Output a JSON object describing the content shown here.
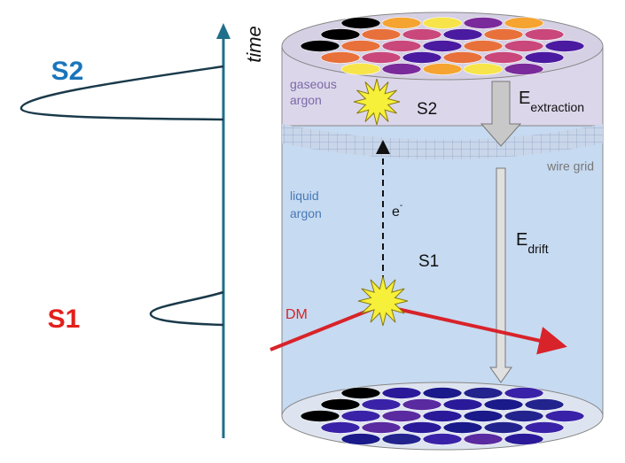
{
  "signals": {
    "s2": "S2",
    "s1": "S1",
    "axis": "time"
  },
  "detector": {
    "gas_label": [
      "gaseous",
      "argon"
    ],
    "liquid_label": [
      "liquid",
      "argon"
    ],
    "wire_grid": "wire grid",
    "s2": "S2",
    "s1": "S1",
    "electron": {
      "symbol": "e",
      "charge": "-"
    },
    "extraction_field": {
      "symbol": "E",
      "subscript": "extraction"
    },
    "drift_field": {
      "symbol": "E",
      "subscript": "drift"
    },
    "dm": "DM"
  }
}
